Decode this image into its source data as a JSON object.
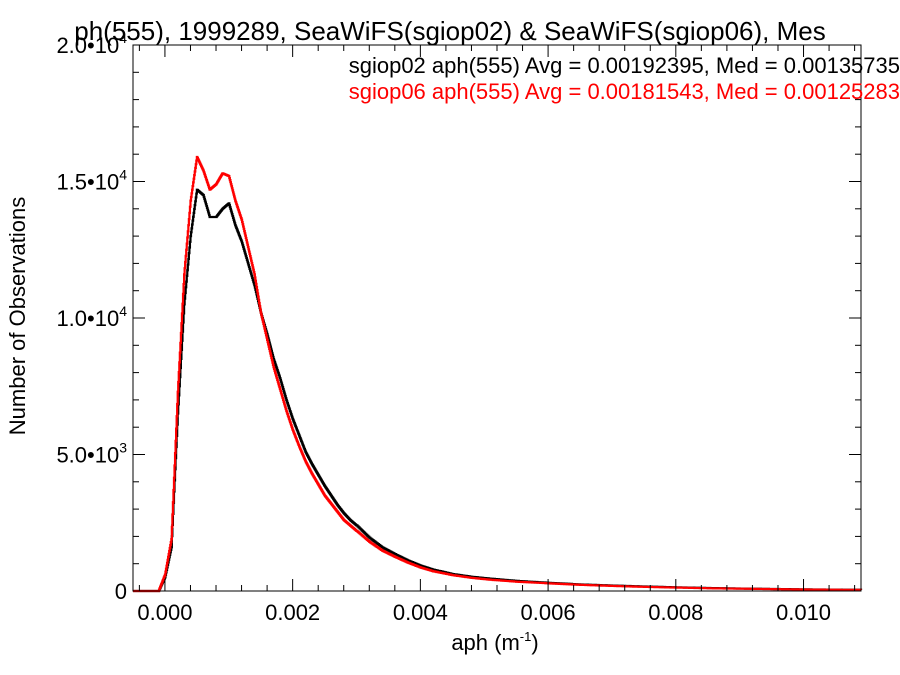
{
  "chart_data": {
    "type": "line",
    "title": "ph(555), 1999289, SeaWiFS(sgiop02) & SeaWiFS(sgiop06), Mes",
    "xlabel": "aph (m",
    "xlabel_sup": "-1",
    "xlabel_tail": ")",
    "ylabel": "Number of Observations",
    "xlim": [
      -0.0005,
      0.0109
    ],
    "ylim": [
      0,
      20000
    ],
    "grid": false,
    "legend_placement": "top-right",
    "x_ticks": [
      {
        "value": 0.0,
        "label": "0.000"
      },
      {
        "value": 0.002,
        "label": "0.002"
      },
      {
        "value": 0.004,
        "label": "0.004"
      },
      {
        "value": 0.006,
        "label": "0.006"
      },
      {
        "value": 0.008,
        "label": "0.008"
      },
      {
        "value": 0.01,
        "label": "0.010"
      }
    ],
    "y_ticks": [
      {
        "value": 0,
        "mant": "0",
        "exp": ""
      },
      {
        "value": 5000,
        "mant": "5.0•10",
        "exp": "3"
      },
      {
        "value": 10000,
        "mant": "1.0•10",
        "exp": "4"
      },
      {
        "value": 15000,
        "mant": "1.5•10",
        "exp": "4"
      },
      {
        "value": 20000,
        "mant": "2.0•10",
        "exp": "4"
      }
    ],
    "annotations": [
      "sgiop02 aph(555) Avg = 0.00192395, Med = 0.00135735",
      "sgiop06 aph(555) Avg = 0.00181543, Med = 0.00125283"
    ],
    "series": [
      {
        "name": "sgiop02",
        "color": "#000000",
        "x": [
          -0.0005,
          -0.0001,
          0.0,
          0.0001,
          0.0002,
          0.0003,
          0.0004,
          0.0005,
          0.0006,
          0.0007,
          0.0008,
          0.0009,
          0.001,
          0.0011,
          0.0012,
          0.0013,
          0.0014,
          0.0015,
          0.0016,
          0.0017,
          0.0018,
          0.0019,
          0.002,
          0.0021,
          0.0022,
          0.0023,
          0.0024,
          0.0025,
          0.0026,
          0.0027,
          0.0028,
          0.0029,
          0.003,
          0.0032,
          0.0034,
          0.0036,
          0.0038,
          0.004,
          0.0042,
          0.0045,
          0.0048,
          0.0051,
          0.0055,
          0.006,
          0.0065,
          0.007,
          0.0075,
          0.008,
          0.0085,
          0.009,
          0.0095,
          0.01,
          0.0105,
          0.0109
        ],
        "y": [
          0,
          0,
          500,
          1600,
          6500,
          10500,
          13000,
          14700,
          14500,
          13700,
          13700,
          14000,
          14200,
          13400,
          12800,
          12000,
          11200,
          10200,
          9400,
          8500,
          7800,
          7000,
          6300,
          5700,
          5100,
          4650,
          4250,
          3850,
          3500,
          3150,
          2850,
          2600,
          2400,
          1950,
          1600,
          1350,
          1120,
          930,
          780,
          620,
          520,
          450,
          370,
          300,
          240,
          200,
          165,
          135,
          110,
          90,
          75,
          60,
          50,
          45
        ]
      },
      {
        "name": "sgiop06",
        "color": "#ff0000",
        "x": [
          -0.0005,
          -0.0001,
          0.0,
          0.0001,
          0.0002,
          0.0003,
          0.0004,
          0.0005,
          0.0006,
          0.0007,
          0.0008,
          0.0009,
          0.001,
          0.0011,
          0.0012,
          0.0013,
          0.0014,
          0.0015,
          0.0016,
          0.0017,
          0.0018,
          0.0019,
          0.002,
          0.0021,
          0.0022,
          0.0023,
          0.0024,
          0.0025,
          0.0026,
          0.0027,
          0.0028,
          0.0029,
          0.003,
          0.0032,
          0.0034,
          0.0036,
          0.0038,
          0.004,
          0.0042,
          0.0045,
          0.0048,
          0.0051,
          0.0055,
          0.006,
          0.0065,
          0.007,
          0.0075,
          0.008,
          0.0085,
          0.009,
          0.0095,
          0.01,
          0.0105,
          0.0109
        ],
        "y": [
          0,
          0,
          600,
          1900,
          7300,
          11600,
          14300,
          15900,
          15400,
          14700,
          14900,
          15300,
          15200,
          14300,
          13600,
          12600,
          11600,
          10200,
          9200,
          8200,
          7400,
          6600,
          5900,
          5300,
          4750,
          4300,
          3900,
          3500,
          3200,
          2900,
          2600,
          2400,
          2200,
          1800,
          1480,
          1250,
          1040,
          860,
          720,
          580,
          480,
          410,
          340,
          280,
          225,
          185,
          150,
          125,
          100,
          85,
          70,
          55,
          45,
          40
        ]
      }
    ]
  }
}
